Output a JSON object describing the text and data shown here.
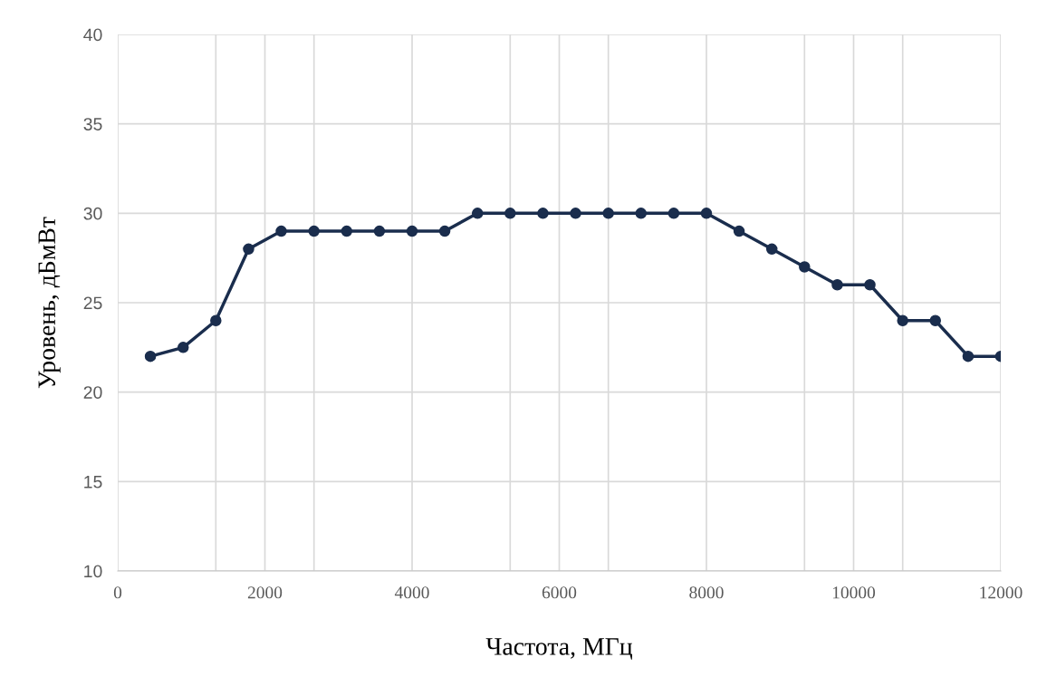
{
  "chart_data": {
    "type": "line",
    "xlabel": "Частота, МГц",
    "ylabel": "Уровень, дБмВт",
    "x": [
      444,
      889,
      1333,
      1778,
      2222,
      2667,
      3111,
      3556,
      4000,
      4444,
      4889,
      5333,
      5778,
      6222,
      6667,
      7111,
      7556,
      8000,
      8444,
      8889,
      9333,
      9778,
      10222,
      10667,
      11111,
      11556,
      12000
    ],
    "series": [
      {
        "color": "#1a2d4d",
        "values": [
          22,
          22.5,
          24,
          28,
          29,
          29,
          29,
          29,
          29,
          29,
          30,
          30,
          30,
          30,
          30,
          30,
          30,
          30,
          29,
          28,
          27,
          26,
          26,
          24,
          24,
          22,
          22
        ]
      }
    ],
    "xlim": [
      0,
      12000
    ],
    "ylim": [
      10,
      40
    ],
    "xticks": [
      0,
      {
        "value": 1333,
        "label": null
      },
      2000,
      {
        "value": 2667,
        "label": null
      },
      4000,
      {
        "value": 5333,
        "label": null
      },
      6000,
      {
        "value": 6667,
        "label": null
      },
      8000,
      {
        "value": 9333,
        "label": null
      },
      10000,
      {
        "value": 10667,
        "label": null
      },
      12000
    ],
    "yticks": [
      10,
      15,
      20,
      25,
      30,
      35,
      40
    ],
    "grid": true,
    "marker": "circle",
    "line_style": "solid"
  }
}
